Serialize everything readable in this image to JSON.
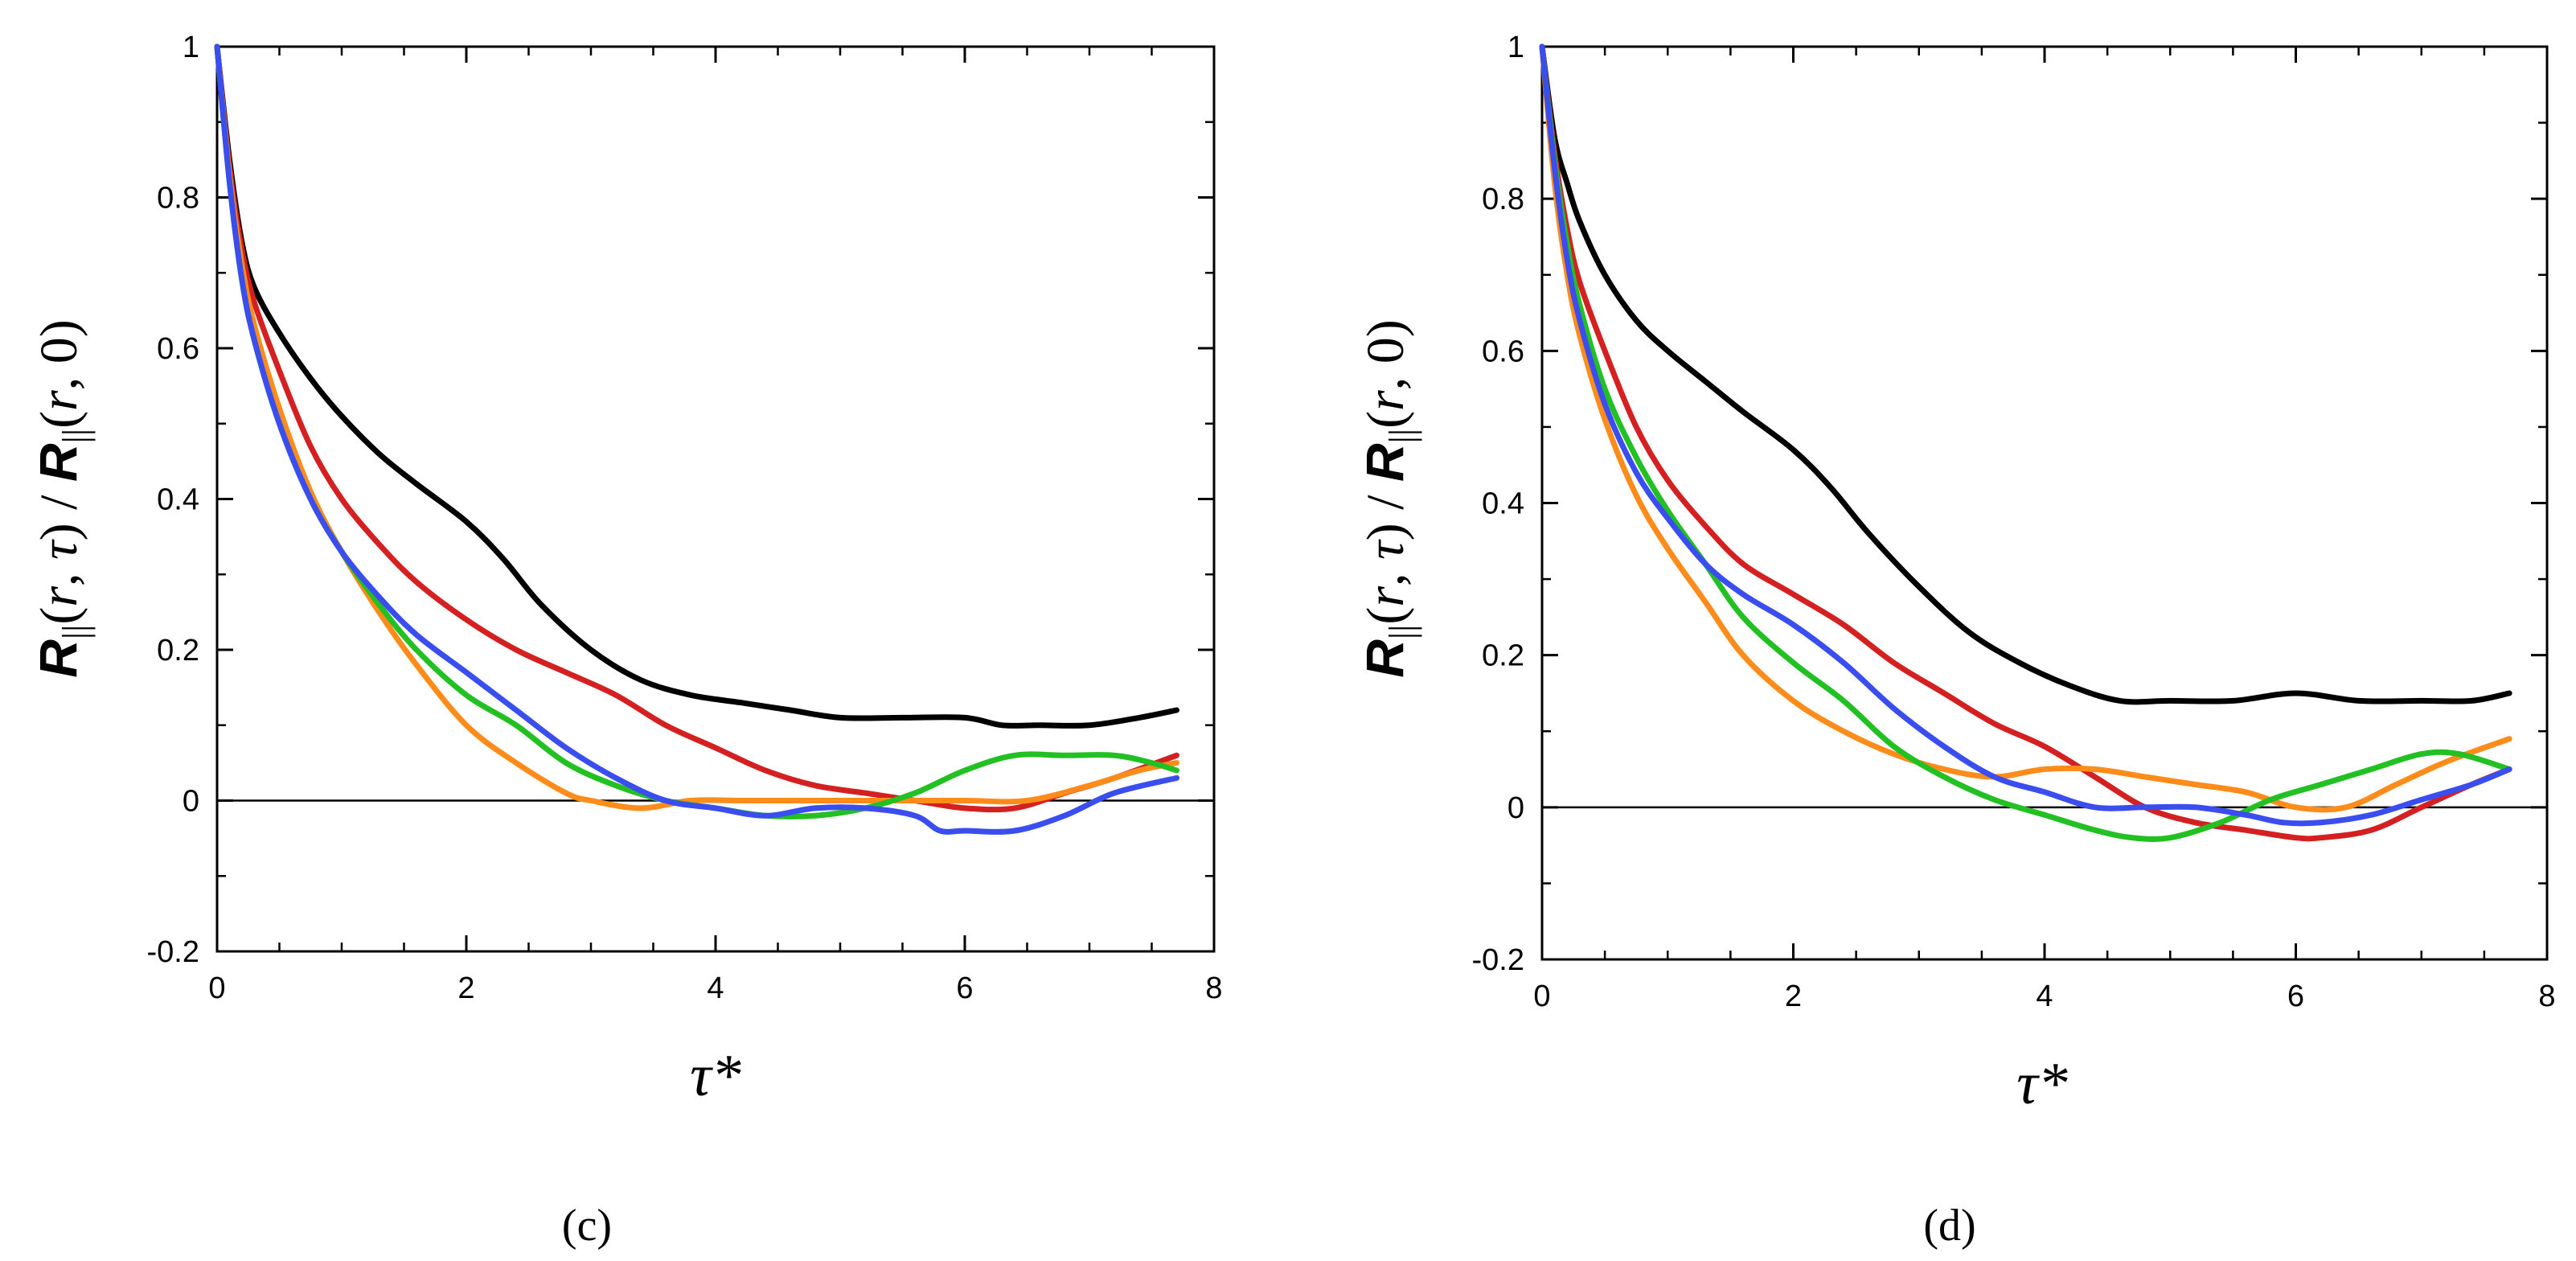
{
  "chart_data": [
    {
      "type": "line",
      "panel_label": "(c)",
      "xlabel": "τ*",
      "ylabel": "R||(r,τ)/R||(r,0)",
      "xlim": [
        0,
        8
      ],
      "ylim": [
        -0.2,
        1
      ],
      "xticks": [
        "0",
        "2",
        "4",
        "6",
        "8"
      ],
      "yticks": [
        "-0.2",
        "0",
        "0.2",
        "0.4",
        "0.6",
        "0.8",
        "1"
      ],
      "reference_line": 0,
      "series": [
        {
          "name": "black",
          "color": "#000000",
          "x": [
            0,
            0.1,
            0.2,
            0.3,
            0.5,
            0.75,
            1.0,
            1.3,
            1.6,
            2.0,
            2.3,
            2.6,
            3.0,
            3.4,
            3.8,
            4.2,
            4.6,
            5.0,
            5.5,
            6.0,
            6.3,
            6.6,
            7.0,
            7.4,
            7.7
          ],
          "y": [
            1.0,
            0.85,
            0.74,
            0.68,
            0.62,
            0.56,
            0.51,
            0.46,
            0.42,
            0.37,
            0.32,
            0.26,
            0.2,
            0.16,
            0.14,
            0.13,
            0.12,
            0.11,
            0.11,
            0.11,
            0.1,
            0.1,
            0.1,
            0.11,
            0.12
          ]
        },
        {
          "name": "red",
          "color": "#d42020",
          "x": [
            0,
            0.1,
            0.2,
            0.3,
            0.5,
            0.75,
            1.0,
            1.3,
            1.6,
            2.0,
            2.4,
            2.8,
            3.2,
            3.6,
            4.0,
            4.4,
            4.8,
            5.2,
            5.6,
            6.0,
            6.4,
            6.8,
            7.2,
            7.7
          ],
          "y": [
            1.0,
            0.84,
            0.73,
            0.66,
            0.57,
            0.47,
            0.4,
            0.34,
            0.29,
            0.24,
            0.2,
            0.17,
            0.14,
            0.1,
            0.07,
            0.04,
            0.02,
            0.01,
            0.0,
            -0.01,
            -0.01,
            0.01,
            0.03,
            0.06
          ]
        },
        {
          "name": "orange",
          "color": "#ff8c1a",
          "x": [
            0,
            0.1,
            0.2,
            0.3,
            0.5,
            0.75,
            1.0,
            1.3,
            1.6,
            2.0,
            2.4,
            2.8,
            3.0,
            3.4,
            3.8,
            4.2,
            4.6,
            5.0,
            5.5,
            6.0,
            6.5,
            7.0,
            7.4,
            7.7
          ],
          "y": [
            1.0,
            0.83,
            0.71,
            0.63,
            0.52,
            0.41,
            0.33,
            0.25,
            0.18,
            0.1,
            0.05,
            0.01,
            0.0,
            -0.01,
            0.0,
            0.0,
            0.0,
            0.0,
            0.0,
            0.0,
            0.0,
            0.02,
            0.04,
            0.05
          ]
        },
        {
          "name": "green",
          "color": "#22c022",
          "x": [
            0,
            0.1,
            0.2,
            0.3,
            0.5,
            0.75,
            1.0,
            1.3,
            1.6,
            2.0,
            2.4,
            2.8,
            3.2,
            3.6,
            4.0,
            4.4,
            4.8,
            5.2,
            5.6,
            6.0,
            6.4,
            6.8,
            7.2,
            7.5,
            7.7
          ],
          "y": [
            1.0,
            0.82,
            0.69,
            0.61,
            0.5,
            0.4,
            0.33,
            0.26,
            0.2,
            0.14,
            0.1,
            0.05,
            0.02,
            0.0,
            -0.01,
            -0.02,
            -0.02,
            -0.01,
            0.01,
            0.04,
            0.06,
            0.06,
            0.06,
            0.05,
            0.04
          ]
        },
        {
          "name": "blue",
          "color": "#3a4ef0",
          "x": [
            0,
            0.1,
            0.2,
            0.3,
            0.5,
            0.75,
            1.0,
            1.3,
            1.6,
            2.0,
            2.4,
            2.8,
            3.2,
            3.6,
            4.0,
            4.4,
            4.8,
            5.2,
            5.6,
            5.8,
            6.0,
            6.4,
            6.8,
            7.2,
            7.7
          ],
          "y": [
            1.0,
            0.82,
            0.69,
            0.61,
            0.5,
            0.4,
            0.33,
            0.27,
            0.22,
            0.17,
            0.12,
            0.07,
            0.03,
            0.0,
            -0.01,
            -0.02,
            -0.01,
            -0.01,
            -0.02,
            -0.04,
            -0.04,
            -0.04,
            -0.02,
            0.01,
            0.03
          ]
        }
      ]
    },
    {
      "type": "line",
      "panel_label": "(d)",
      "xlabel": "τ*",
      "ylabel": "R||(r,τ)/R||(r,0)",
      "xlim": [
        0,
        8
      ],
      "ylim": [
        -0.2,
        1
      ],
      "xticks": [
        "0",
        "2",
        "4",
        "6",
        "8"
      ],
      "yticks": [
        "-0.2",
        "0",
        "0.2",
        "0.4",
        "0.6",
        "0.8",
        "1"
      ],
      "reference_line": 0,
      "series": [
        {
          "name": "black",
          "color": "#000000",
          "x": [
            0,
            0.1,
            0.2,
            0.3,
            0.5,
            0.75,
            1.0,
            1.3,
            1.6,
            2.0,
            2.3,
            2.6,
            3.0,
            3.4,
            3.8,
            4.2,
            4.6,
            5.0,
            5.5,
            6.0,
            6.5,
            7.0,
            7.4,
            7.7
          ],
          "y": [
            1.0,
            0.88,
            0.82,
            0.77,
            0.7,
            0.64,
            0.6,
            0.56,
            0.52,
            0.47,
            0.42,
            0.36,
            0.29,
            0.23,
            0.19,
            0.16,
            0.14,
            0.14,
            0.14,
            0.15,
            0.14,
            0.14,
            0.14,
            0.15
          ]
        },
        {
          "name": "red",
          "color": "#d42020",
          "x": [
            0,
            0.1,
            0.2,
            0.3,
            0.5,
            0.75,
            1.0,
            1.3,
            1.6,
            2.0,
            2.4,
            2.8,
            3.2,
            3.6,
            4.0,
            4.4,
            4.8,
            5.2,
            5.6,
            6.0,
            6.2,
            6.6,
            7.0,
            7.4,
            7.7
          ],
          "y": [
            1.0,
            0.86,
            0.76,
            0.69,
            0.6,
            0.5,
            0.43,
            0.37,
            0.32,
            0.28,
            0.24,
            0.19,
            0.15,
            0.11,
            0.08,
            0.04,
            0.0,
            -0.02,
            -0.03,
            -0.04,
            -0.04,
            -0.03,
            0.0,
            0.03,
            0.05
          ]
        },
        {
          "name": "orange",
          "color": "#ff8c1a",
          "x": [
            0,
            0.1,
            0.2,
            0.3,
            0.5,
            0.75,
            1.0,
            1.3,
            1.6,
            2.0,
            2.4,
            2.8,
            3.2,
            3.6,
            4.0,
            4.4,
            4.8,
            5.2,
            5.6,
            6.0,
            6.4,
            6.8,
            7.2,
            7.7
          ],
          "y": [
            1.0,
            0.82,
            0.7,
            0.62,
            0.51,
            0.41,
            0.34,
            0.27,
            0.2,
            0.14,
            0.1,
            0.07,
            0.05,
            0.04,
            0.05,
            0.05,
            0.04,
            0.03,
            0.02,
            0.0,
            0.0,
            0.03,
            0.06,
            0.09
          ]
        },
        {
          "name": "green",
          "color": "#22c022",
          "x": [
            0,
            0.1,
            0.2,
            0.3,
            0.5,
            0.75,
            1.0,
            1.3,
            1.6,
            2.0,
            2.4,
            2.8,
            3.2,
            3.6,
            4.0,
            4.4,
            4.7,
            5.0,
            5.4,
            5.8,
            6.2,
            6.6,
            7.0,
            7.3,
            7.7
          ],
          "y": [
            1.0,
            0.85,
            0.74,
            0.66,
            0.55,
            0.46,
            0.39,
            0.32,
            0.25,
            0.19,
            0.14,
            0.08,
            0.04,
            0.01,
            -0.01,
            -0.03,
            -0.04,
            -0.04,
            -0.02,
            0.01,
            0.03,
            0.05,
            0.07,
            0.07,
            0.05
          ]
        },
        {
          "name": "blue",
          "color": "#3a4ef0",
          "x": [
            0,
            0.1,
            0.2,
            0.3,
            0.5,
            0.75,
            1.0,
            1.3,
            1.6,
            2.0,
            2.4,
            2.8,
            3.2,
            3.6,
            4.0,
            4.4,
            4.8,
            5.2,
            5.6,
            5.9,
            6.2,
            6.6,
            7.0,
            7.4,
            7.7
          ],
          "y": [
            1.0,
            0.84,
            0.72,
            0.64,
            0.53,
            0.44,
            0.38,
            0.32,
            0.28,
            0.24,
            0.19,
            0.13,
            0.08,
            0.04,
            0.02,
            0.0,
            0.0,
            0.0,
            -0.01,
            -0.02,
            -0.02,
            -0.01,
            0.01,
            0.03,
            0.05
          ]
        }
      ]
    }
  ]
}
